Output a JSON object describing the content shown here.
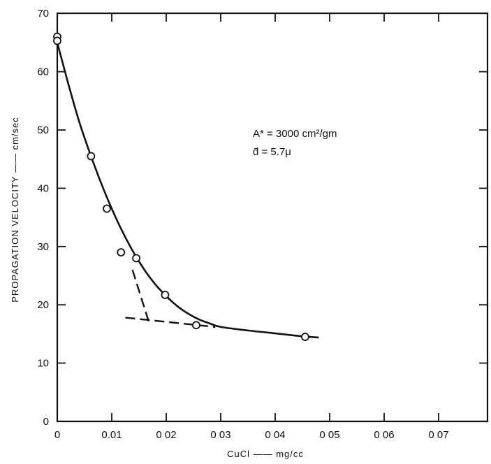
{
  "chart_data": {
    "type": "scatter",
    "xlabel": "CuCl —— mg/cc",
    "ylabel": "PROPAGATION VELOCITY —— cm/sec",
    "xlim": [
      0,
      0.077
    ],
    "ylim": [
      0,
      70
    ],
    "x_ticks": [
      0,
      0.01,
      0.02,
      0.03,
      0.04,
      0.05,
      0.06,
      0.07
    ],
    "x_tick_labels": [
      "0",
      "0.01",
      "0 02",
      "0 03",
      "0 04",
      "0 05",
      "0 06",
      "0 07"
    ],
    "y_ticks": [
      0,
      10,
      20,
      30,
      40,
      50,
      60,
      70
    ],
    "y_tick_labels": [
      "0",
      "10",
      "20",
      "30",
      "40",
      "50",
      "60",
      "70"
    ],
    "grid": false,
    "series": [
      {
        "kind": "points",
        "marker": "open-circle",
        "x": [
          0,
          0,
          0.0062,
          0.0091,
          0.0117,
          0.0145,
          0.0198,
          0.0255,
          0.0455
        ],
        "y": [
          66,
          65.3,
          45.5,
          36.5,
          29,
          28,
          21.7,
          16.5,
          14.5
        ]
      },
      {
        "kind": "fitted-curve",
        "style": "solid",
        "x": [
          0,
          0.002,
          0.004,
          0.006,
          0.008,
          0.01,
          0.012,
          0.014,
          0.016,
          0.018,
          0.02,
          0.022,
          0.024,
          0.026,
          0.028,
          0.03,
          0.035,
          0.04,
          0.045,
          0.048
        ],
        "y": [
          65,
          58,
          51.5,
          46,
          41,
          36.5,
          32.5,
          29,
          26,
          23.5,
          21.5,
          19.8,
          18.5,
          17.5,
          16.8,
          16.2,
          15.6,
          15.1,
          14.6,
          14.4
        ]
      },
      {
        "kind": "tangent",
        "style": "dashed",
        "x": [
          0.0138,
          0.017
        ],
        "y": [
          26,
          16.5
        ]
      },
      {
        "kind": "tangent",
        "style": "dashed",
        "x": [
          0.0125,
          0.029
        ],
        "y": [
          17.8,
          16.2
        ]
      }
    ],
    "annotations": {
      "line1": "A* = 3000 cm²/gm",
      "line2": "d̄ = 5.7μ"
    }
  },
  "colors": {
    "ink": "#111111",
    "background": "#ffffff"
  }
}
